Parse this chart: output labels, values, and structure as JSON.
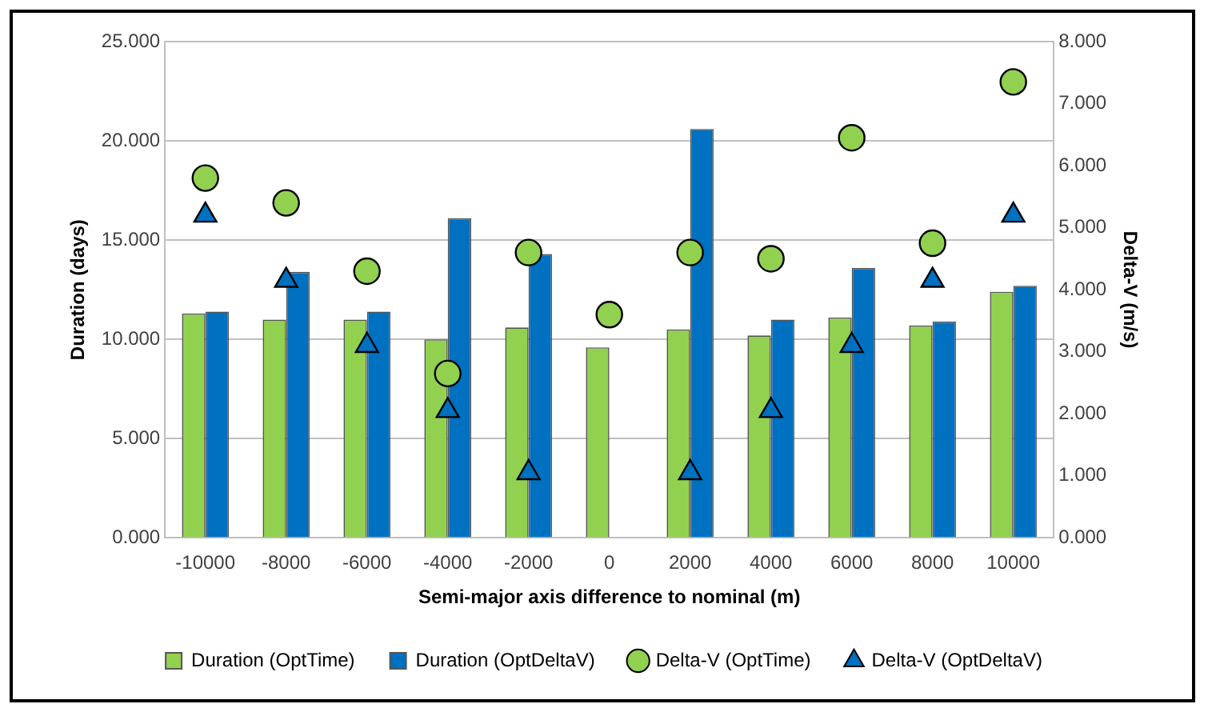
{
  "chart_data": {
    "type": "bar",
    "xlabel": "Semi-major axis difference to nominal (m)",
    "ylabel": "Duration (days)",
    "y2label": "Delta-V (m/s)",
    "categories": [
      "-10000",
      "-8000",
      "-6000",
      "-4000",
      "-2000",
      "0",
      "2000",
      "4000",
      "6000",
      "8000",
      "10000"
    ],
    "series": [
      {
        "name": "Duration (OptTime)",
        "color": "#92d050",
        "values": [
          11.3,
          11.0,
          11.0,
          10.0,
          10.6,
          9.6,
          10.5,
          10.2,
          11.1,
          10.7,
          12.4
        ]
      },
      {
        "name": "Duration (OptDeltaV)",
        "color": "#0070c0",
        "values": [
          11.4,
          13.4,
          11.4,
          16.1,
          14.3,
          null,
          20.6,
          11.0,
          13.6,
          10.9,
          12.7
        ]
      },
      {
        "name": "Delta-V (OptTime)",
        "type": "scatter",
        "axis": "y2",
        "marker": "circle",
        "color": "#92d050",
        "values": [
          5.8,
          5.4,
          4.3,
          2.65,
          4.6,
          3.6,
          4.6,
          4.5,
          6.45,
          4.75,
          7.35
        ]
      },
      {
        "name": "Delta-V (OptDeltaV)",
        "type": "scatter",
        "axis": "y2",
        "marker": "triangle",
        "color": "#0070c0",
        "values": [
          5.2,
          4.15,
          3.1,
          2.05,
          1.05,
          null,
          1.05,
          2.05,
          3.1,
          4.15,
          5.2
        ]
      }
    ],
    "ylim": [
      0,
      25
    ],
    "yticks": [
      {
        "value": 0,
        "label": "0.000"
      },
      {
        "value": 5,
        "label": "5.000"
      },
      {
        "value": 10,
        "label": "10.000"
      },
      {
        "value": 15,
        "label": "15.000"
      },
      {
        "value": 20,
        "label": "20.000"
      },
      {
        "value": 25,
        "label": "25.000"
      }
    ],
    "y2lim": [
      0,
      8
    ],
    "y2ticks": [
      {
        "value": 0,
        "label": "0.000"
      },
      {
        "value": 1,
        "label": "1.000"
      },
      {
        "value": 2,
        "label": "2.000"
      },
      {
        "value": 3,
        "label": "3.000"
      },
      {
        "value": 4,
        "label": "4.000"
      },
      {
        "value": 5,
        "label": "5.000"
      },
      {
        "value": 6,
        "label": "6.000"
      },
      {
        "value": 7,
        "label": "7.000"
      },
      {
        "value": 8,
        "label": "8.000"
      }
    ],
    "grid": "y",
    "legend": "bottom"
  }
}
